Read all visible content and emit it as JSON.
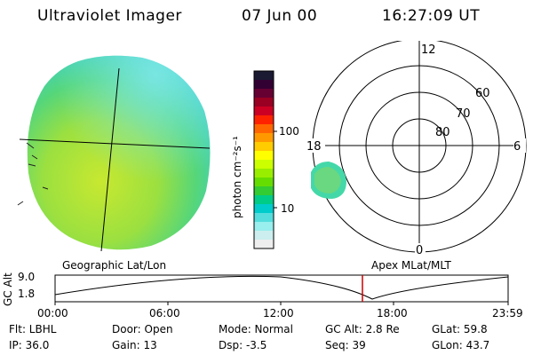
{
  "header": {
    "instrument": "Ultraviolet Imager",
    "date": "07 Jun 00",
    "time": "16:27:09 UT"
  },
  "colorbar": {
    "unit_label": "photon cm⁻²s⁻¹",
    "ticks": [
      "100",
      "10"
    ],
    "colors": [
      "#1a1a33",
      "#330033",
      "#660033",
      "#990022",
      "#cc0022",
      "#ff2200",
      "#ff6600",
      "#ff9900",
      "#ffcc00",
      "#ffff00",
      "#ccff00",
      "#99ee00",
      "#66dd00",
      "#33cc33",
      "#00cc88",
      "#00cccc",
      "#55dddd",
      "#99eeee",
      "#cceeee",
      "#eeeeee"
    ]
  },
  "polar": {
    "mlt_labels": {
      "top": "12",
      "left": "18",
      "right": "6",
      "bottom": "0"
    },
    "lat_labels": [
      "60",
      "70",
      "80"
    ]
  },
  "timeline": {
    "left_label": "Geographic Lat/Lon",
    "right_label": "Apex MLat/MLT",
    "axis_label": "GC Alt",
    "y_ticks": [
      "9.0",
      "1.8"
    ],
    "x_ticks": [
      "00:00",
      "06:00",
      "12:00",
      "18:00",
      "23:59"
    ],
    "current_marker_color": "#cc0000"
  },
  "info": {
    "row1": {
      "flt": "Flt: LBHL",
      "door": "Door: Open",
      "mode": "Mode: Normal",
      "gcalt": "GC Alt: 2.8 Re",
      "glat": "GLat:  59.8"
    },
    "row2": {
      "ip": "IP: 36.0",
      "gain": "Gain: 13",
      "dsp": "Dsp:    -3.5",
      "seq": "Seq: 39",
      "glon": "GLon:  43.7"
    }
  }
}
